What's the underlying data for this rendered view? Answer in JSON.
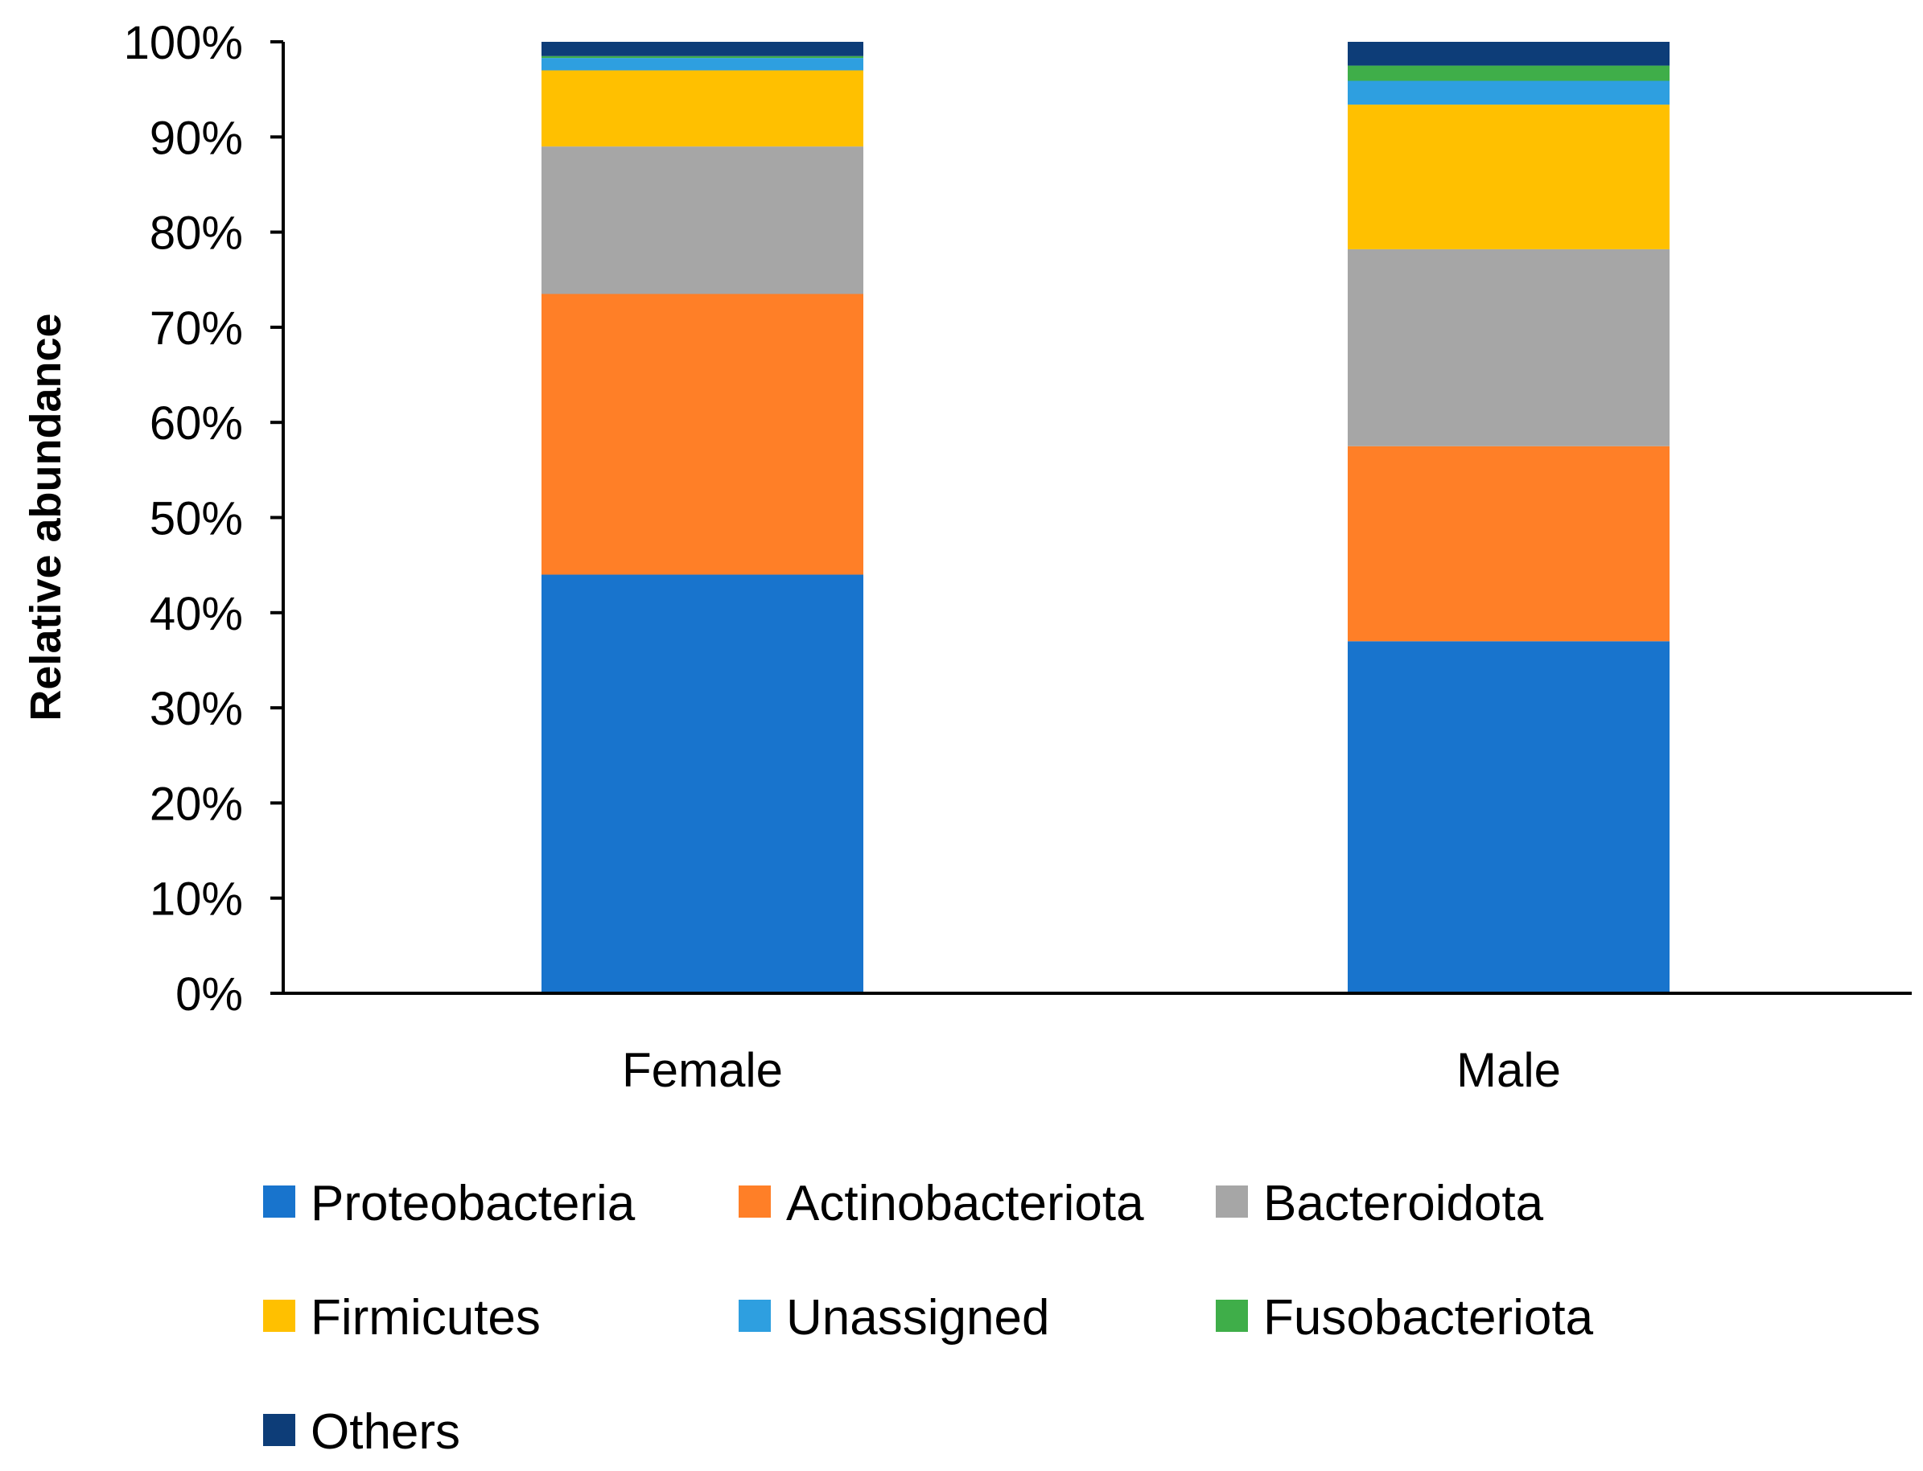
{
  "chart_data": {
    "type": "bar",
    "stacked": true,
    "title": "",
    "xlabel": "",
    "ylabel": "Relative abundance",
    "ylim": [
      0,
      100
    ],
    "y_ticks": [
      "0%",
      "10%",
      "20%",
      "30%",
      "40%",
      "50%",
      "60%",
      "70%",
      "80%",
      "90%",
      "100%"
    ],
    "categories": [
      "Female",
      "Male"
    ],
    "series": [
      {
        "name": "Proteobacteria",
        "color": "#1874CD",
        "values": [
          44.0,
          37.0
        ]
      },
      {
        "name": "Actinobacteriota",
        "color": "#FF7F27",
        "values": [
          29.5,
          20.5
        ]
      },
      {
        "name": "Bacteroidota",
        "color": "#A6A6A6",
        "values": [
          15.5,
          20.7
        ]
      },
      {
        "name": "Firmicutes",
        "color": "#FFC000",
        "values": [
          8.0,
          15.2
        ]
      },
      {
        "name": "Unassigned",
        "color": "#2E9FE0",
        "values": [
          1.3,
          2.5
        ]
      },
      {
        "name": "Fusobacteriota",
        "color": "#3FAE49",
        "values": [
          0.2,
          1.6
        ]
      },
      {
        "name": "Others",
        "color": "#0D3D78",
        "values": [
          1.5,
          2.5
        ]
      }
    ],
    "legend_position": "bottom",
    "grid": false
  }
}
